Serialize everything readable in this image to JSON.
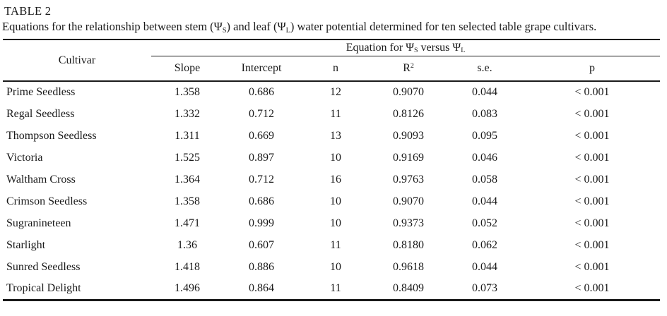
{
  "page": {
    "title": "TABLE 2",
    "caption": {
      "pre": "Equations for the relationship between stem (Ψ",
      "sub_s": "S",
      "mid": ") and leaf (Ψ",
      "sub_l": "L",
      "post": ") water potential determined for ten selected table grape cultivars."
    }
  },
  "table": {
    "cultivar_header": "Cultivar",
    "span_header": {
      "pre": "Equation for Ψ",
      "sub_s": "S",
      "mid": " versus Ψ",
      "sub_l": "L"
    },
    "columns": {
      "slope": "Slope",
      "intercept": "Intercept",
      "n": "n",
      "r2_base": "R",
      "r2_sup": "2",
      "se": "s.e.",
      "p": "p"
    },
    "rows": [
      {
        "cultivar": "Prime Seedless",
        "slope": "1.358",
        "intercept": "0.686",
        "n": "12",
        "r2": "0.9070",
        "se": "0.044",
        "p": "< 0.001"
      },
      {
        "cultivar": "Regal Seedless",
        "slope": "1.332",
        "intercept": "0.712",
        "n": "11",
        "r2": "0.8126",
        "se": "0.083",
        "p": "< 0.001"
      },
      {
        "cultivar": "Thompson Seedless",
        "slope": "1.311",
        "intercept": "0.669",
        "n": "13",
        "r2": "0.9093",
        "se": "0.095",
        "p": "< 0.001"
      },
      {
        "cultivar": "Victoria",
        "slope": "1.525",
        "intercept": "0.897",
        "n": "10",
        "r2": "0.9169",
        "se": "0.046",
        "p": "< 0.001"
      },
      {
        "cultivar": "Waltham Cross",
        "slope": "1.364",
        "intercept": "0.712",
        "n": "16",
        "r2": "0.9763",
        "se": "0.058",
        "p": "< 0.001"
      },
      {
        "cultivar": "Crimson Seedless",
        "slope": "1.358",
        "intercept": "0.686",
        "n": "10",
        "r2": "0.9070",
        "se": "0.044",
        "p": "< 0.001"
      },
      {
        "cultivar": "Sugranineteen",
        "slope": "1.471",
        "intercept": "0.999",
        "n": "10",
        "r2": "0.9373",
        "se": "0.052",
        "p": "< 0.001"
      },
      {
        "cultivar": "Starlight",
        "slope": "1.36",
        "intercept": "0.607",
        "n": "11",
        "r2": "0.8180",
        "se": "0.062",
        "p": "< 0.001"
      },
      {
        "cultivar": "Sunred Seedless",
        "slope": "1.418",
        "intercept": "0.886",
        "n": "10",
        "r2": "0.9618",
        "se": "0.044",
        "p": "< 0.001"
      },
      {
        "cultivar": "Tropical Delight",
        "slope": "1.496",
        "intercept": "0.864",
        "n": "11",
        "r2": "0.8409",
        "se": "0.073",
        "p": "< 0.001"
      }
    ]
  },
  "colors": {
    "text": "#1a1a1a",
    "rule": "#1a1a1a",
    "background": "#ffffff"
  }
}
